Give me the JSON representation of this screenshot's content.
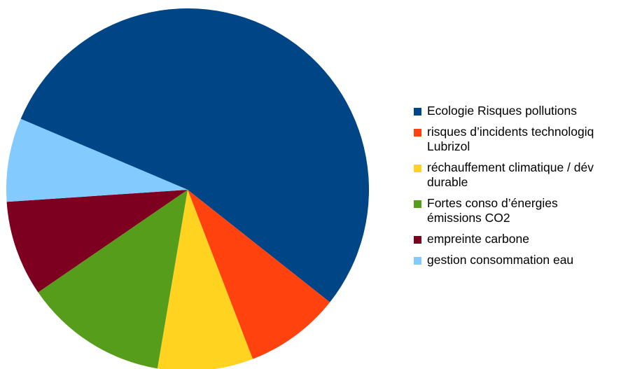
{
  "chart_data": {
    "type": "pie",
    "title": "",
    "slices": [
      {
        "label": "Ecologie Risques pollutions",
        "value": 51,
        "color": "#004586"
      },
      {
        "label": "risques d’incidents technologiq\nLubrizol",
        "value": 8,
        "color": "#ff420e"
      },
      {
        "label": "réchauffement climatique / dév\ndurable",
        "value": 8,
        "color": "#ffd320"
      },
      {
        "label": "Fortes conso d’énergies\némissions CO2",
        "value": 12,
        "color": "#579d1c"
      },
      {
        "label": "empreinte carbone",
        "value": 8,
        "color": "#7e0021"
      },
      {
        "label": "gestion consommation eau",
        "value": 7,
        "color": "#83caff"
      }
    ],
    "legend_position": "right"
  }
}
